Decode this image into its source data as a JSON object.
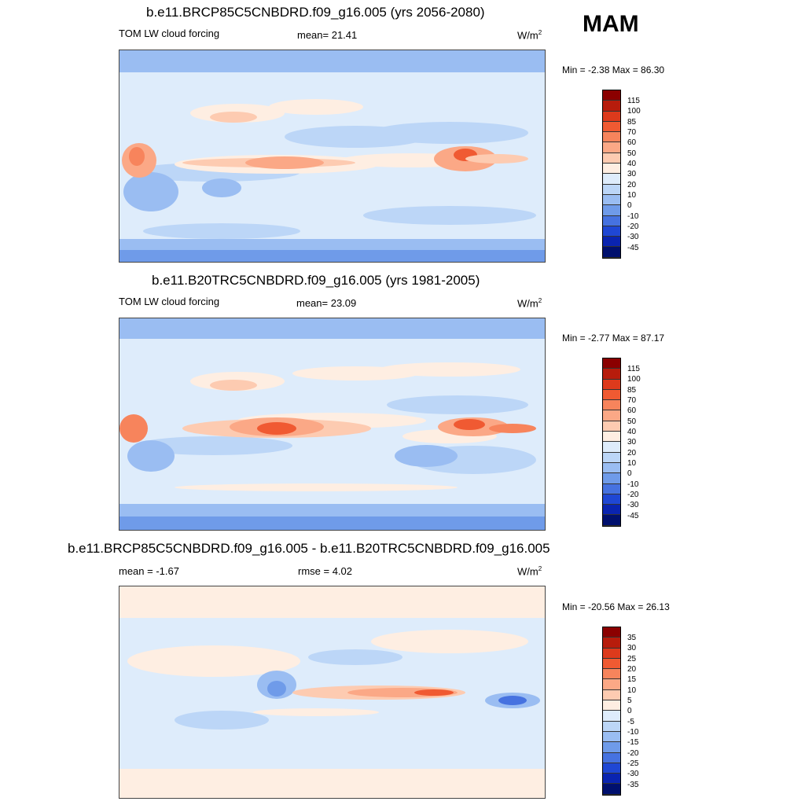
{
  "season": "MAM",
  "panels": [
    {
      "title": "b.e11.BRCP85C5CNBDRD.f09_g16.005 (yrs 2056-2080)",
      "left_label": "TOM LW cloud forcing",
      "center_label": "mean=  21.41",
      "units_base": "W/m",
      "units_exp": "2",
      "minmax": "Min =  -2.38 Max =  86.30"
    },
    {
      "title": "b.e11.B20TRC5CNBDRD.f09_g16.005 (yrs 1981-2005)",
      "left_label": "TOM LW cloud forcing",
      "center_label": "mean=  23.09",
      "units_base": "W/m",
      "units_exp": "2",
      "minmax": "Min =  -2.77 Max =  87.17"
    },
    {
      "title": "b.e11.BRCP85C5CNBDRD.f09_g16.005 - b.e11.B20TRC5CNBDRD.f09_g16.005",
      "left_label": "mean =  -1.67",
      "center_label": "rmse =   4.02",
      "units_base": "W/m",
      "units_exp": "2",
      "minmax": "Min = -20.56 Max =  26.13"
    }
  ],
  "colorbars": {
    "abs": {
      "labels": [
        "115",
        "100",
        "85",
        "70",
        "60",
        "50",
        "40",
        "30",
        "20",
        "10",
        "0",
        "-10",
        "-20",
        "-30",
        "-45"
      ],
      "colors": [
        "#8b0000",
        "#b71c0c",
        "#dd3a1c",
        "#f05a32",
        "#f7845c",
        "#fba886",
        "#fdcbb1",
        "#feeee2",
        "#deecfb",
        "#bcd6f7",
        "#9abdf2",
        "#6f9be9",
        "#4672e0",
        "#1f47d4",
        "#0a24b0",
        "#00106e"
      ]
    },
    "diff": {
      "labels": [
        "35",
        "30",
        "25",
        "20",
        "15",
        "10",
        "5",
        "0",
        "-5",
        "-10",
        "-15",
        "-20",
        "-25",
        "-30",
        "-35"
      ],
      "colors": [
        "#8b0000",
        "#b71c0c",
        "#dd3a1c",
        "#f05a32",
        "#f7845c",
        "#fba886",
        "#fdcbb1",
        "#feeee2",
        "#deecfb",
        "#bcd6f7",
        "#9abdf2",
        "#6f9be9",
        "#4672e0",
        "#1f47d4",
        "#0a24b0",
        "#00106e"
      ]
    }
  }
}
